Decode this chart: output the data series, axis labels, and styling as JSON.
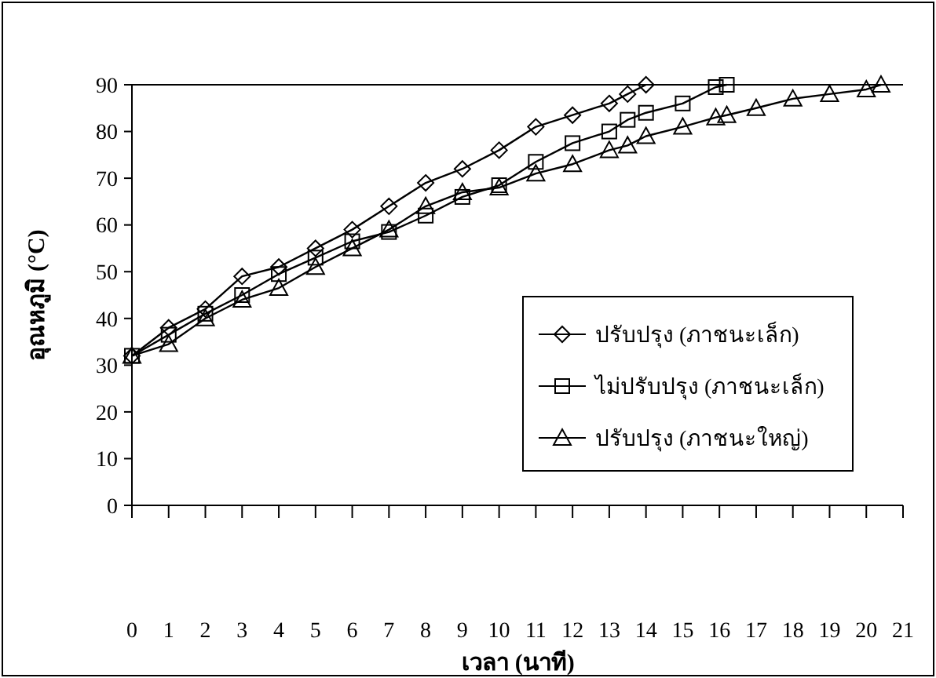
{
  "chart_data": {
    "type": "line",
    "xlabel": "เวลา (นาที)",
    "ylabel": "อุณหภูมิ (°C)",
    "xlim": [
      0,
      21
    ],
    "xticks": [
      0,
      1,
      2,
      3,
      4,
      5,
      6,
      7,
      8,
      9,
      10,
      11,
      12,
      13,
      14,
      15,
      16,
      17,
      18,
      19,
      20,
      21
    ],
    "ylim": [
      0,
      90
    ],
    "yticks": [
      0,
      10,
      20,
      30,
      40,
      50,
      60,
      70,
      80,
      90
    ],
    "grid": false,
    "legend": "right",
    "series": [
      {
        "name": "ปรับปรุง (ภาชนะเล็ก)",
        "color": "#000000",
        "marker": "diamond",
        "x": [
          0,
          1,
          2,
          3,
          4,
          5,
          6,
          7,
          8,
          9,
          10,
          11,
          12,
          13,
          13.5,
          14
        ],
        "values": [
          32,
          38,
          42,
          49,
          51,
          55,
          59,
          64,
          69,
          72,
          76,
          81,
          83.5,
          86,
          88,
          90
        ]
      },
      {
        "name": "ไม่ปรับปรุง (ภาชนะเล็ก)",
        "color": "#000000",
        "marker": "square",
        "x": [
          0,
          1,
          2,
          3,
          4,
          5,
          6,
          7,
          8,
          9,
          10,
          11,
          12,
          13,
          13.5,
          14,
          15,
          15.9,
          16.2
        ],
        "values": [
          32,
          36.5,
          41,
          45,
          49.5,
          53,
          56.5,
          58.5,
          62,
          66,
          68.5,
          73.5,
          77.5,
          80,
          82.5,
          84,
          86,
          89.5,
          90
        ]
      },
      {
        "name": "ปรับปรุง (ภาชนะใหญ่)",
        "color": "#000000",
        "marker": "triangle",
        "x": [
          0,
          1,
          2,
          3,
          4,
          5,
          6,
          7,
          8,
          9,
          10,
          11,
          12,
          13,
          13.5,
          14,
          15,
          15.9,
          16.2,
          17,
          18,
          19,
          20,
          20.4
        ],
        "values": [
          32,
          34.5,
          40,
          44,
          46.5,
          51,
          55,
          59,
          64,
          67,
          68,
          71,
          73,
          76,
          77,
          79,
          81,
          83,
          83.5,
          85,
          87,
          88,
          89,
          90
        ]
      }
    ]
  }
}
